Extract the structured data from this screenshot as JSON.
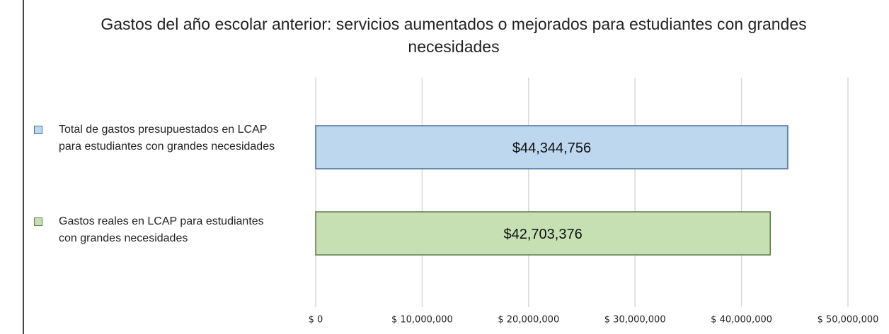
{
  "chart_data": {
    "type": "barh",
    "title": "Gastos del año escolar anterior: servicios aumentados o mejorados para estudiantes con grandes necesidades",
    "series": [
      {
        "name": "Total de gastos presupuestados en LCAP para estudiantes con grandes necesidades",
        "color": "#bdd7ee",
        "edge": "#4a6f9a",
        "values": [
          44344756
        ],
        "value_labels": [
          "$44,344,756"
        ]
      },
      {
        "name": "Gastos reales en LCAP para estudiantes con grandes necesidades",
        "color": "#c6e0b4",
        "edge": "#5f7a4a",
        "values": [
          42703376
        ],
        "value_labels": [
          "$42,703,376"
        ]
      }
    ],
    "xlim": [
      0,
      50000000
    ],
    "xticks": [
      {
        "value": 0,
        "label": "$ 0"
      },
      {
        "value": 10000000,
        "label": "$ 10,000,000"
      },
      {
        "value": 20000000,
        "label": "$ 20,000,000"
      },
      {
        "value": 30000000,
        "label": "$ 30,000,000"
      },
      {
        "value": 40000000,
        "label": "$ 40,000,000"
      },
      {
        "value": 50000000,
        "label": "$ 50,000,000"
      }
    ],
    "grid": true,
    "legend": "left"
  }
}
